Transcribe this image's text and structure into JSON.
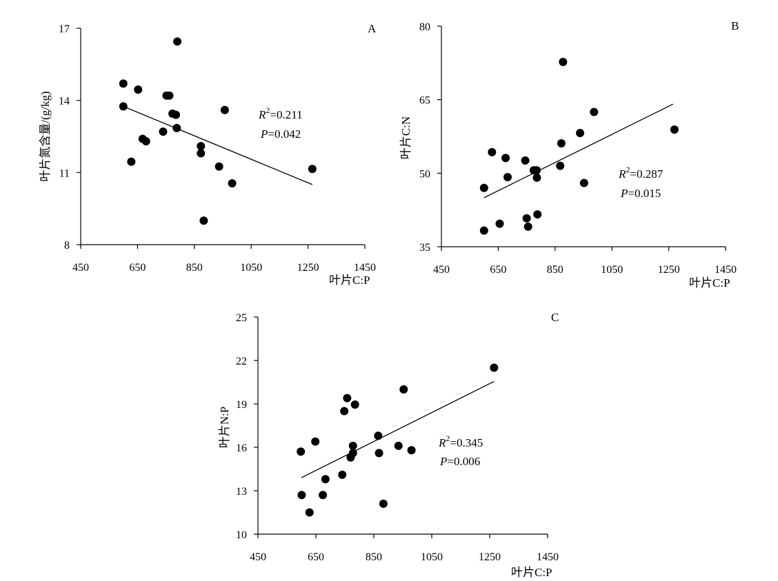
{
  "chart_data": [
    {
      "id": "A",
      "type": "scatter",
      "panel_label": "A",
      "xlabel": "叶片C:P",
      "ylabel": "叶片氮含量/(g/kg)",
      "xlim": [
        450,
        1450
      ],
      "ylim": [
        8,
        17
      ],
      "xticks": [
        450,
        650,
        850,
        1050,
        1250,
        1450
      ],
      "yticks": [
        8,
        11,
        14,
        17
      ],
      "points": [
        [
          600,
          14.7
        ],
        [
          600,
          13.75
        ],
        [
          628,
          11.45
        ],
        [
          652,
          14.45
        ],
        [
          668,
          12.4
        ],
        [
          680,
          12.3
        ],
        [
          740,
          12.7
        ],
        [
          752,
          14.2
        ],
        [
          762,
          14.2
        ],
        [
          773,
          13.45
        ],
        [
          785,
          13.4
        ],
        [
          788,
          12.85
        ],
        [
          790,
          16.45
        ],
        [
          873,
          12.1
        ],
        [
          873,
          11.8
        ],
        [
          883,
          9.0
        ],
        [
          937,
          11.25
        ],
        [
          957,
          13.6
        ],
        [
          983,
          10.55
        ],
        [
          1265,
          11.15
        ]
      ],
      "trendline": {
        "x": [
          600,
          1265
        ],
        "y": [
          13.75,
          10.5
        ]
      },
      "r2_prefix": "R",
      "r2_sup": "2",
      "r2_value": "=0.211",
      "p_prefix": "P",
      "p_value": "=0.042"
    },
    {
      "id": "B",
      "type": "scatter",
      "panel_label": "B",
      "xlabel": "叶片C:P",
      "ylabel": "叶片C:N",
      "xlim": [
        450,
        1450
      ],
      "ylim": [
        35,
        80
      ],
      "xticks": [
        450,
        650,
        850,
        1050,
        1250,
        1450
      ],
      "yticks": [
        35,
        50,
        65,
        80
      ],
      "points": [
        [
          600,
          47.0
        ],
        [
          600,
          38.3
        ],
        [
          628,
          54.3
        ],
        [
          655,
          39.7
        ],
        [
          676,
          53.1
        ],
        [
          683,
          49.2
        ],
        [
          745,
          52.6
        ],
        [
          750,
          40.8
        ],
        [
          755,
          39.1
        ],
        [
          775,
          50.6
        ],
        [
          785,
          50.6
        ],
        [
          786,
          49.1
        ],
        [
          788,
          41.6
        ],
        [
          868,
          51.5
        ],
        [
          872,
          56.1
        ],
        [
          878,
          72.7
        ],
        [
          938,
          58.2
        ],
        [
          952,
          48.0
        ],
        [
          987,
          62.5
        ],
        [
          1270,
          58.9
        ]
      ],
      "trendline": {
        "x": [
          600,
          1265
        ],
        "y": [
          45.0,
          64.1
        ]
      },
      "r2_prefix": "R",
      "r2_sup": "2",
      "r2_value": "=0.287",
      "p_prefix": "P",
      "p_value": "=0.015"
    },
    {
      "id": "C",
      "type": "scatter",
      "panel_label": "C",
      "xlabel": "叶片C:P",
      "ylabel": "叶片N:P",
      "xlim": [
        450,
        1450
      ],
      "ylim": [
        10,
        25
      ],
      "xticks": [
        450,
        650,
        850,
        1050,
        1250,
        1450
      ],
      "yticks": [
        10,
        13,
        16,
        19,
        22,
        25
      ],
      "points": [
        [
          598,
          15.7
        ],
        [
          601,
          12.7
        ],
        [
          628,
          11.5
        ],
        [
          648,
          16.4
        ],
        [
          674,
          12.7
        ],
        [
          683,
          13.8
        ],
        [
          741,
          14.1
        ],
        [
          748,
          18.5
        ],
        [
          758,
          19.4
        ],
        [
          770,
          15.3
        ],
        [
          778,
          16.1
        ],
        [
          778,
          15.6
        ],
        [
          785,
          18.95
        ],
        [
          865,
          16.8
        ],
        [
          868,
          15.6
        ],
        [
          883,
          12.1
        ],
        [
          935,
          16.1
        ],
        [
          953,
          20.0
        ],
        [
          980,
          15.8
        ],
        [
          1265,
          21.5
        ]
      ],
      "trendline": {
        "x": [
          600,
          1265
        ],
        "y": [
          13.9,
          20.55
        ]
      },
      "r2_prefix": "R",
      "r2_sup": "2",
      "r2_value": "=0.345",
      "p_prefix": "P",
      "p_value": "=0.006"
    }
  ]
}
